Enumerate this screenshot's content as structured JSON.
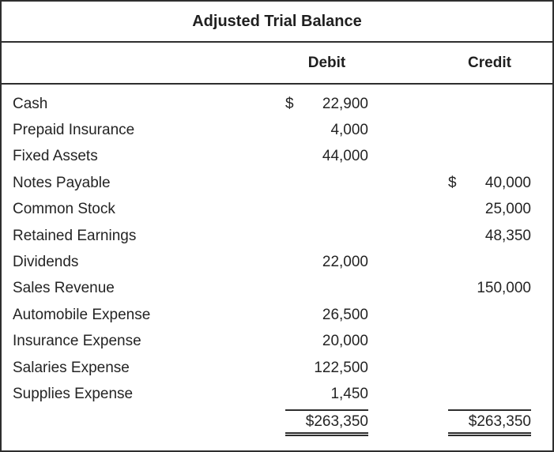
{
  "title": "Adjusted Trial Balance",
  "columns": {
    "debit": "Debit",
    "credit": "Credit"
  },
  "rows": [
    {
      "account": "Cash",
      "debit": "22,900",
      "debit_currency": "$",
      "credit": "",
      "credit_currency": ""
    },
    {
      "account": "Prepaid Insurance",
      "debit": "4,000",
      "debit_currency": "",
      "credit": "",
      "credit_currency": ""
    },
    {
      "account": "Fixed Assets",
      "debit": "44,000",
      "debit_currency": "",
      "credit": "",
      "credit_currency": ""
    },
    {
      "account": "Notes Payable",
      "debit": "",
      "debit_currency": "",
      "credit": "40,000",
      "credit_currency": "$"
    },
    {
      "account": "Common Stock",
      "debit": "",
      "debit_currency": "",
      "credit": "25,000",
      "credit_currency": ""
    },
    {
      "account": "Retained Earnings",
      "debit": "",
      "debit_currency": "",
      "credit": "48,350",
      "credit_currency": ""
    },
    {
      "account": "Dividends",
      "debit": "22,000",
      "debit_currency": "",
      "credit": "",
      "credit_currency": ""
    },
    {
      "account": "Sales Revenue",
      "debit": "",
      "debit_currency": "",
      "credit": "150,000",
      "credit_currency": ""
    },
    {
      "account": "Automobile Expense",
      "debit": "26,500",
      "debit_currency": "",
      "credit": "",
      "credit_currency": ""
    },
    {
      "account": "Insurance Expense",
      "debit": "20,000",
      "debit_currency": "",
      "credit": "",
      "credit_currency": ""
    },
    {
      "account": "Salaries Expense",
      "debit": "122,500",
      "debit_currency": "",
      "credit": "",
      "credit_currency": ""
    },
    {
      "account": "Supplies Expense",
      "debit": "1,450",
      "debit_currency": "",
      "credit": "",
      "credit_currency": ""
    }
  ],
  "totals": {
    "debit_total": "$263,350",
    "credit_total": "$263,350"
  },
  "colors": {
    "border": "#2e2e2e",
    "text": "#242424",
    "background": "#ffffff"
  }
}
